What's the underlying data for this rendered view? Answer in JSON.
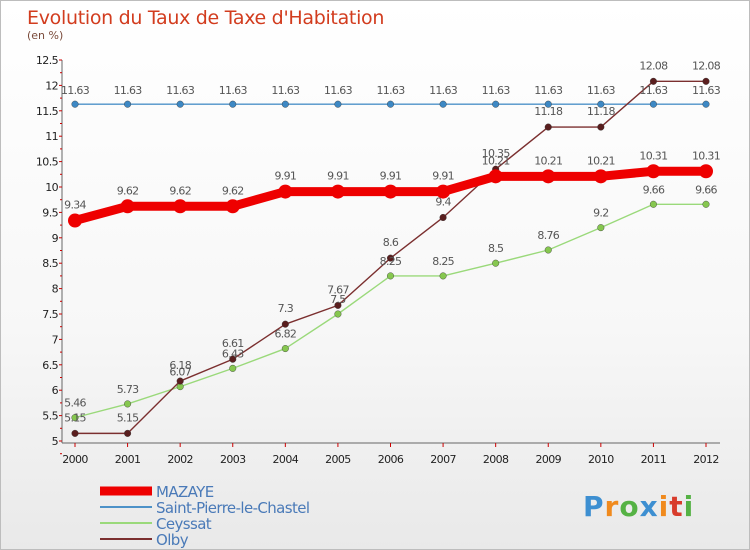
{
  "header": {
    "title": "Evolution du Taux de Taxe d'Habitation",
    "subtitle": "(en %)"
  },
  "logo": {
    "text": "Proxiti"
  },
  "chart_data": {
    "type": "line",
    "x": [
      "2000",
      "2001",
      "2002",
      "2003",
      "2004",
      "2005",
      "2006",
      "2007",
      "2008",
      "2009",
      "2010",
      "2011",
      "2012"
    ],
    "ylim": [
      5,
      12.5
    ],
    "yticks": [
      "5",
      "5.5",
      "6",
      "6.5",
      "7",
      "7.5",
      "8",
      "8.5",
      "9",
      "9.5",
      "10",
      "10.5",
      "11",
      "11.5",
      "12",
      "12.5"
    ],
    "grid": false,
    "legend_position": "bottom",
    "series": [
      {
        "name": "MAZAYE",
        "color": "#ee0000",
        "values": [
          9.34,
          9.62,
          9.62,
          9.62,
          9.91,
          9.91,
          9.91,
          9.91,
          10.21,
          10.21,
          10.21,
          10.31,
          10.31
        ],
        "labels": [
          "9.34",
          "9.62",
          "9.62",
          "9.62",
          "9.91",
          "9.91",
          "9.91",
          "9.91",
          "10.21",
          "10.21",
          "10.21",
          "10.31",
          "10.31"
        ]
      },
      {
        "name": "Saint-Pierre-le-Chastel",
        "color": "#4d92c8",
        "values": [
          11.63,
          11.63,
          11.63,
          11.63,
          11.63,
          11.63,
          11.63,
          11.63,
          11.63,
          11.63,
          11.63,
          11.63,
          11.63
        ],
        "labels": [
          "11.63",
          "11.63",
          "11.63",
          "11.63",
          "11.63",
          "11.63",
          "11.63",
          "11.63",
          "11.63",
          "11.63",
          "11.63",
          "11.63",
          "11.63"
        ]
      },
      {
        "name": "Ceyssat",
        "color": "#9ad97a",
        "values": [
          5.46,
          5.73,
          6.07,
          6.43,
          6.82,
          7.5,
          8.25,
          8.25,
          8.5,
          8.76,
          9.2,
          9.66,
          9.66
        ],
        "labels": [
          "5.46",
          "5.73",
          "6.07",
          "6.43",
          "6.82",
          "7.5",
          "8.25",
          "8.25",
          "8.5",
          "8.76",
          "9.2",
          "9.66",
          "9.66"
        ]
      },
      {
        "name": "Olby",
        "color": "#7b2f2f",
        "values": [
          5.15,
          5.15,
          6.18,
          6.61,
          7.3,
          7.67,
          8.6,
          9.4,
          10.35,
          11.18,
          11.18,
          12.08,
          12.08
        ],
        "labels": [
          "5.15",
          "5.15",
          "6.18",
          "6.61",
          "7.3",
          "7.67",
          "8.6",
          "9.4",
          "10.35",
          "11.18",
          "11.18",
          "12.08",
          "12.08"
        ]
      }
    ]
  }
}
